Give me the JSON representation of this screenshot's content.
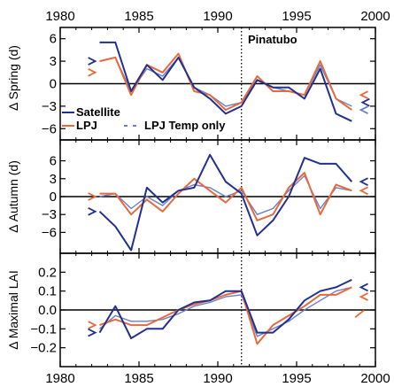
{
  "chart_data": {
    "type": "line",
    "x_axis": {
      "ticks": [
        1980,
        1985,
        1990,
        1995,
        2000
      ],
      "lim": [
        1980,
        2000
      ]
    },
    "annotation": "Pinatubo",
    "annotation_year": 1991.5,
    "legend_labels": {
      "satellite": "Satellite",
      "lpj": "LPJ",
      "lpj_temp": "LPJ Temp only"
    },
    "colors": {
      "satellite": "#22308f",
      "lpj": "#e86a3c",
      "lpj_temp": "#6a7fc8"
    },
    "panels": [
      {
        "ylabel": "Δ Spring (d)",
        "ylim": [
          -7.5,
          7.5
        ],
        "yticks": [
          6,
          3,
          0,
          -3,
          -6
        ],
        "ytick_labels": [
          "6",
          "3",
          "0",
          "−3",
          "−6"
        ],
        "series": [
          {
            "name": "Satellite",
            "key": "satellite",
            "x": [
              1982.5,
              1983.5,
              1984.5,
              1985.5,
              1986.5,
              1987.5,
              1988.5,
              1989.5,
              1990.5,
              1991.5,
              1992.5,
              1993.5,
              1994.5,
              1995.5,
              1996.5,
              1997.5,
              1998.5
            ],
            "values": [
              5.5,
              5.5,
              -1,
              2.5,
              0.5,
              3.5,
              -0.5,
              -2,
              -4,
              -3,
              0.5,
              -0.5,
              -0.5,
              -2,
              2,
              -4,
              -5
            ]
          },
          {
            "name": "LPJ",
            "key": "lpj",
            "x": [
              1982.5,
              1983.5,
              1984.5,
              1985.5,
              1986.5,
              1987.5,
              1988.5,
              1989.5,
              1990.5,
              1991.5,
              1992.5,
              1993.5,
              1994.5,
              1995.5,
              1996.5,
              1997.5,
              1998.5
            ],
            "values": [
              3,
              3.5,
              -1.5,
              2.5,
              1.5,
              4,
              -1,
              -1.5,
              -3.5,
              -2.5,
              1,
              -1,
              -1,
              -1.5,
              3,
              -2,
              -3.5
            ]
          },
          {
            "name": "LPJ Temp only",
            "key": "lpj_temp",
            "x": [
              1982.5,
              1983.5,
              1984.5,
              1985.5,
              1986.5,
              1987.5,
              1988.5,
              1989.5,
              1990.5,
              1991.5,
              1992.5,
              1993.5,
              1994.5,
              1995.5,
              1996.5,
              1997.5,
              1998.5
            ],
            "values": [
              3,
              3.5,
              -1,
              2,
              1,
              3.5,
              -0.5,
              -1.5,
              -3,
              -2.5,
              0.5,
              -0.5,
              -1,
              -1.5,
              2.5,
              -2,
              -3
            ]
          }
        ],
        "legend": true,
        "marks": [
          {
            "year": 1982,
            "value": 3,
            "key": "satellite",
            "dir": "right"
          },
          {
            "year": 1982,
            "value": 1.5,
            "key": "lpj",
            "dir": "right"
          },
          {
            "year": 1999.3,
            "value": -1.5,
            "key": "lpj",
            "dir": "left"
          },
          {
            "year": 1999.4,
            "value": -2.5,
            "key": "satellite",
            "dir": "left"
          },
          {
            "year": 1999.3,
            "value": -3.5,
            "key": "lpj_temp",
            "dir": "left"
          }
        ]
      },
      {
        "ylabel": "Δ Autumn (d)",
        "ylim": [
          -9.5,
          9.5
        ],
        "yticks": [
          6,
          3,
          0,
          -3,
          -6
        ],
        "ytick_labels": [
          "6",
          "3",
          "0",
          "−3",
          "−6"
        ],
        "series": [
          {
            "name": "Satellite",
            "key": "satellite",
            "x": [
              1982.5,
              1983.5,
              1984.5,
              1985.5,
              1986.5,
              1987.5,
              1988.5,
              1989.5,
              1990.5,
              1991.5,
              1992.5,
              1993.5,
              1994.5,
              1995.5,
              1996.5,
              1997.5,
              1998.5
            ],
            "values": [
              -2.5,
              -5,
              -9,
              1.5,
              -1,
              1,
              1.5,
              7,
              2.5,
              0.5,
              -6.5,
              -4,
              0,
              6.5,
              5.5,
              5.5,
              2.5
            ]
          },
          {
            "name": "LPJ",
            "key": "lpj",
            "x": [
              1982.5,
              1983.5,
              1984.5,
              1985.5,
              1986.5,
              1987.5,
              1988.5,
              1989.5,
              1990.5,
              1991.5,
              1992.5,
              1993.5,
              1994.5,
              1995.5,
              1996.5,
              1997.5,
              1998.5
            ],
            "values": [
              0.5,
              0.5,
              -3,
              -0.5,
              -2.5,
              0.5,
              3,
              1,
              -1,
              1.5,
              -4,
              -3,
              1.5,
              4,
              -3,
              2,
              1
            ]
          },
          {
            "name": "LPJ Temp only",
            "key": "lpj_temp",
            "x": [
              1982.5,
              1983.5,
              1984.5,
              1985.5,
              1986.5,
              1987.5,
              1988.5,
              1989.5,
              1990.5,
              1991.5,
              1992.5,
              1993.5,
              1994.5,
              1995.5,
              1996.5,
              1997.5,
              1998.5
            ],
            "values": [
              0,
              0.5,
              -2,
              0,
              -1.5,
              1,
              2,
              1.5,
              0,
              1,
              -3,
              -2,
              1,
              3.5,
              -2,
              1.5,
              1
            ]
          }
        ],
        "legend": false,
        "marks": [
          {
            "year": 1982,
            "value": 0,
            "key": "lpj",
            "dir": "right"
          },
          {
            "year": 1982,
            "value": -2.5,
            "key": "satellite",
            "dir": "right"
          },
          {
            "year": 1999.3,
            "value": 2.5,
            "key": "satellite",
            "dir": "left"
          },
          {
            "year": 1999.3,
            "value": 1.0,
            "key": "lpj",
            "dir": "left"
          }
        ]
      },
      {
        "ylabel": "Δ Maximal LAI",
        "ylim": [
          -0.3,
          0.3
        ],
        "yticks": [
          0.2,
          0.1,
          0.0,
          -0.1,
          -0.2
        ],
        "ytick_labels": [
          "0.2",
          "0.1",
          "0.0",
          "−0.1",
          "−0.2"
        ],
        "series": [
          {
            "name": "Satellite",
            "key": "satellite",
            "x": [
              1982.5,
              1983.5,
              1984.5,
              1985.5,
              1986.5,
              1987.5,
              1988.5,
              1989.5,
              1990.5,
              1991.5,
              1992.5,
              1993.5,
              1994.5,
              1995.5,
              1996.5,
              1997.5,
              1998.5
            ],
            "values": [
              -0.12,
              0.02,
              -0.15,
              -0.1,
              -0.1,
              0.0,
              0.04,
              0.05,
              0.1,
              0.1,
              -0.12,
              -0.12,
              -0.05,
              0.05,
              0.1,
              0.12,
              0.16
            ]
          },
          {
            "name": "LPJ",
            "key": "lpj",
            "x": [
              1982.5,
              1983.5,
              1984.5,
              1985.5,
              1986.5,
              1987.5,
              1988.5,
              1989.5,
              1990.5,
              1991.5,
              1992.5,
              1993.5,
              1994.5,
              1995.5,
              1996.5,
              1997.5,
              1998.5
            ],
            "values": [
              -0.08,
              -0.05,
              -0.08,
              -0.08,
              -0.04,
              0.0,
              0.03,
              0.05,
              0.08,
              0.1,
              -0.18,
              -0.08,
              -0.03,
              0.02,
              0.08,
              0.08,
              0.12
            ]
          },
          {
            "name": "LPJ Temp only",
            "key": "lpj_temp",
            "x": [
              1982.5,
              1983.5,
              1984.5,
              1985.5,
              1986.5,
              1987.5,
              1988.5,
              1989.5,
              1990.5,
              1991.5,
              1992.5,
              1993.5,
              1994.5,
              1995.5,
              1996.5,
              1997.5,
              1998.5
            ],
            "values": [
              -0.1,
              -0.03,
              -0.06,
              -0.06,
              -0.05,
              -0.02,
              0.02,
              0.04,
              0.07,
              0.08,
              -0.14,
              -0.1,
              -0.06,
              0.0,
              0.05,
              0.1,
              0.12
            ]
          }
        ],
        "legend": false,
        "marks": [
          {
            "year": 1982,
            "value": -0.08,
            "key": "lpj",
            "dir": "right"
          },
          {
            "year": 1982,
            "value": -0.12,
            "key": "satellite",
            "dir": "right"
          },
          {
            "year": 1999.3,
            "value": 0.12,
            "key": "satellite",
            "dir": "left"
          },
          {
            "year": 1999.3,
            "value": 0.07,
            "key": "lpj",
            "dir": "left"
          },
          {
            "year": 1999.0,
            "value": -0.02,
            "key": "lpj",
            "dir": "slash"
          }
        ]
      }
    ]
  }
}
